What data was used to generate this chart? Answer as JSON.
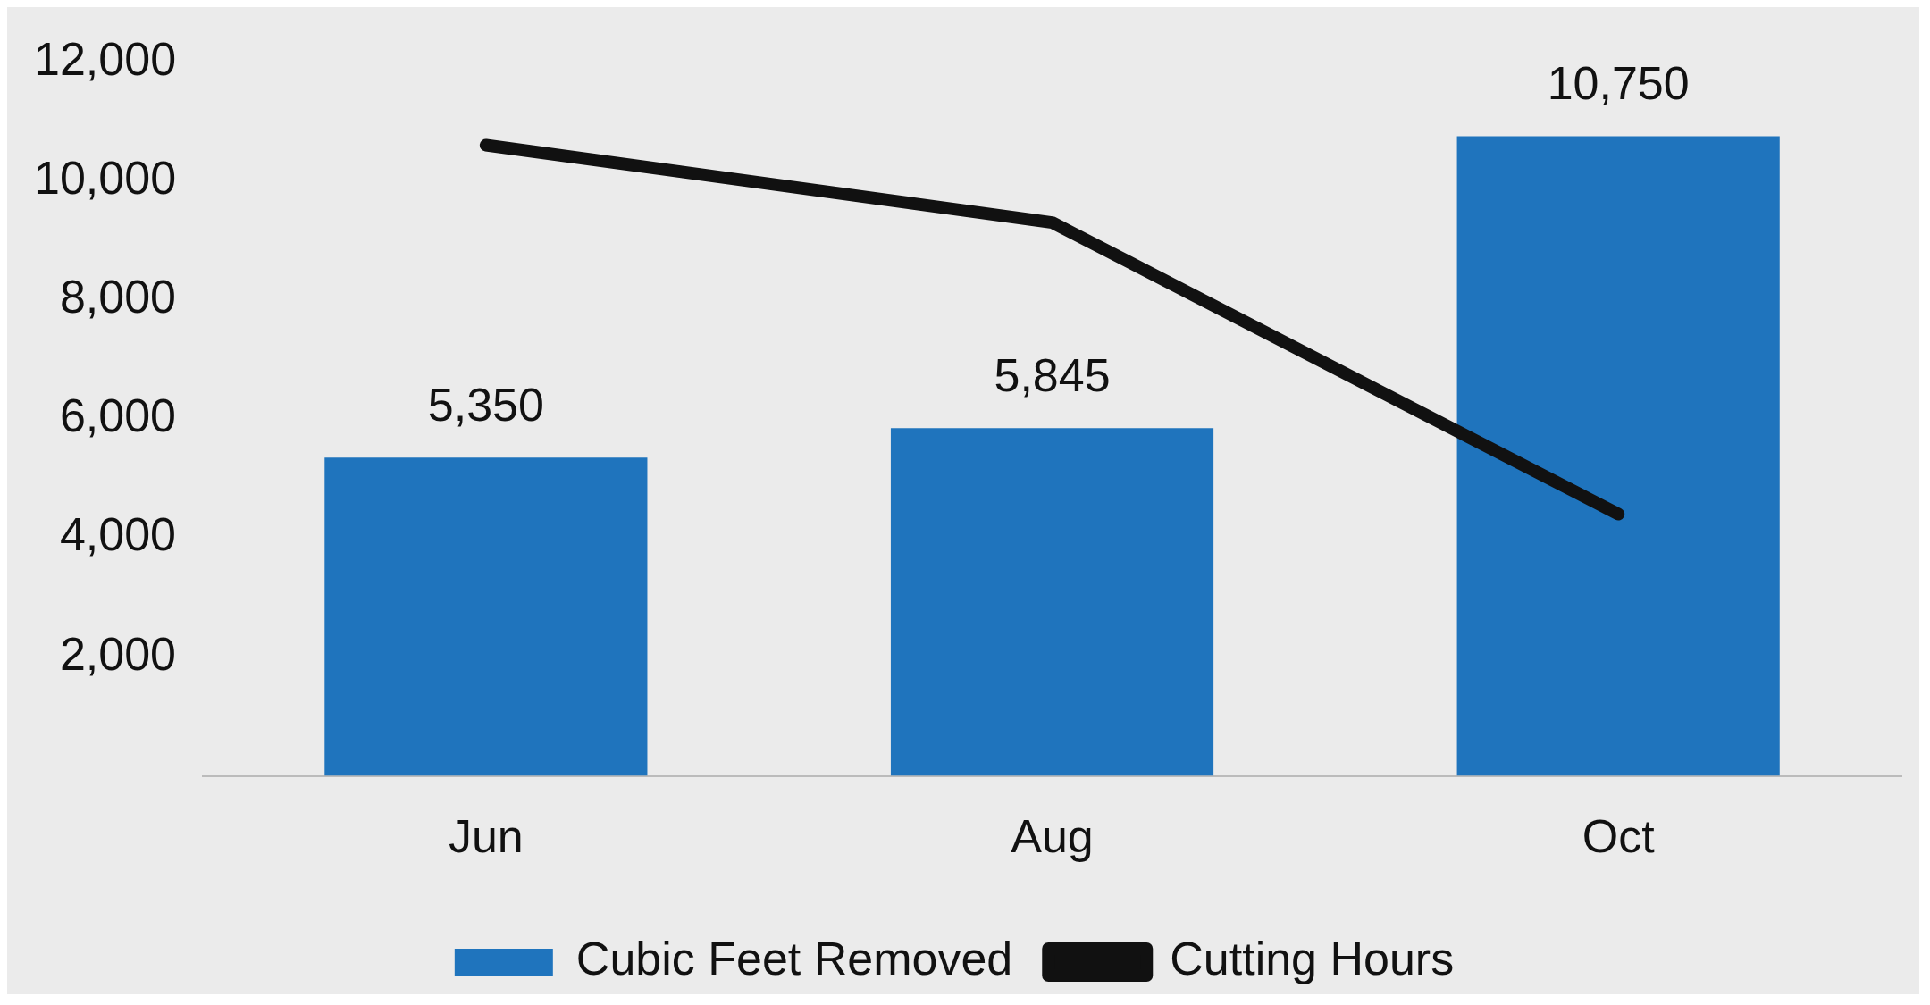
{
  "chart_data": {
    "type": "bar",
    "categories": [
      "Jun",
      "Aug",
      "Oct"
    ],
    "series": [
      {
        "name": "Cubic Feet Removed",
        "color": "#1f74bd",
        "values": [
          5350,
          5845,
          10750
        ],
        "value_labels": [
          "5,350",
          "5,845",
          "10,750"
        ]
      },
      {
        "name": "Cutting Hours",
        "type": "line",
        "color": "#111111",
        "values": [
          10600,
          9300,
          4400
        ],
        "marker": "none"
      }
    ],
    "ylim": [
      0,
      12000
    ],
    "yticks": [
      {
        "value": 2000,
        "label": "2,000"
      },
      {
        "value": 4000,
        "label": "4,000"
      },
      {
        "value": 6000,
        "label": "6,000"
      },
      {
        "value": 8000,
        "label": "8,000"
      },
      {
        "value": 10000,
        "label": "10,000"
      },
      {
        "value": 12000,
        "label": "12,000"
      }
    ],
    "grid": false,
    "legend": "bottom"
  }
}
